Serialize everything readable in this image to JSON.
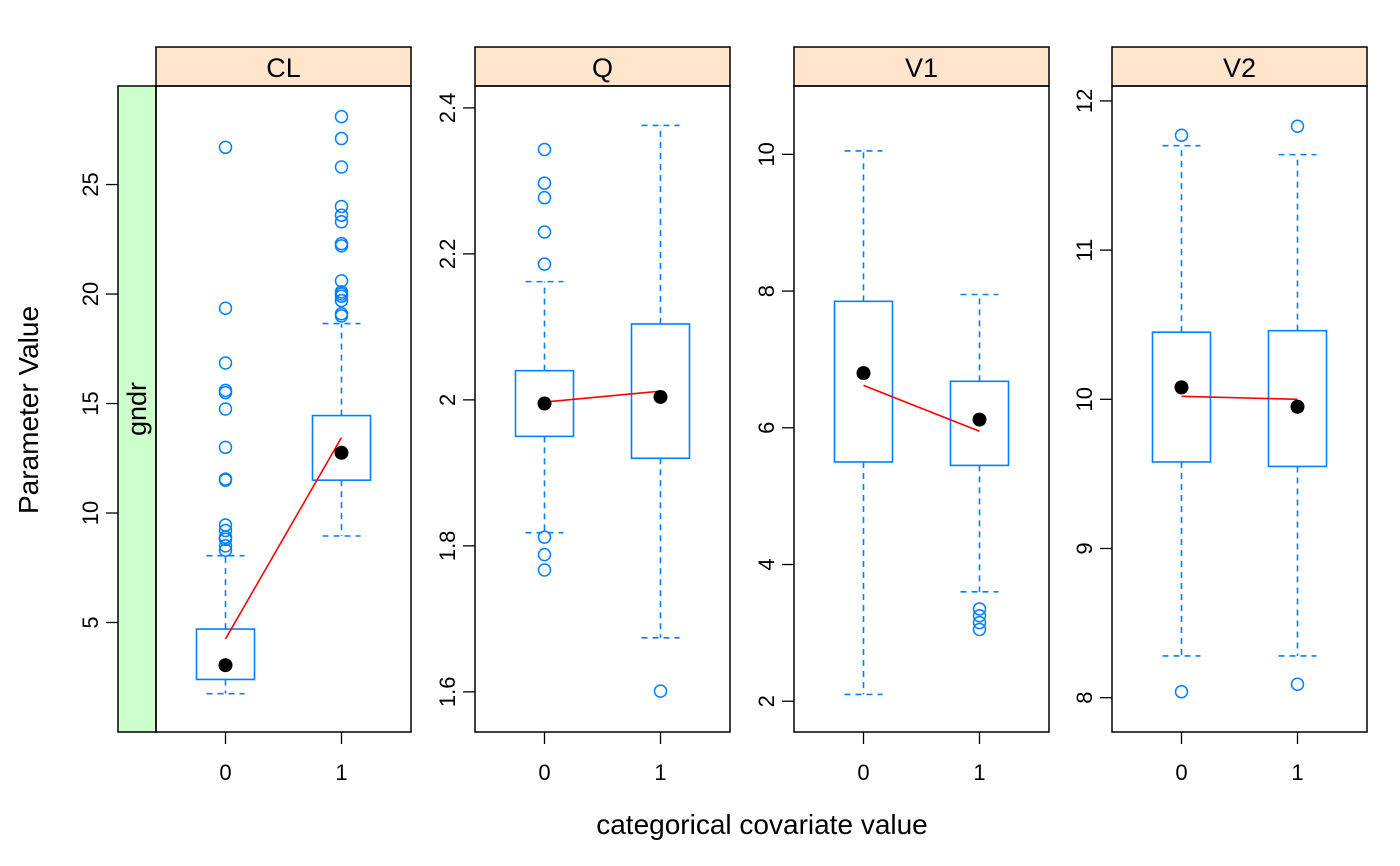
{
  "colors": {
    "box": "#0080FF",
    "outlier": "#0080FF",
    "median": "#000000",
    "trend": "#FF0000",
    "strip_top": "#FFE5CC",
    "strip_side": "#CCFFCC",
    "frame": "#000000"
  },
  "chart_data": {
    "type": "boxplot",
    "xlabel": "categorical covariate value",
    "ylabel": "Parameter Value",
    "conditioning_variable": "gndr",
    "categories": [
      "0",
      "1"
    ],
    "panels": [
      {
        "name": "CL",
        "ylim": [
          0,
          29.5
        ],
        "yticks": [
          5,
          10,
          15,
          20,
          25
        ],
        "boxes": [
          {
            "category": "0",
            "q1": 2.4,
            "median": 3.05,
            "q3": 4.7,
            "whisker_low": 1.75,
            "whisker_high": 8.05,
            "mean": 4.25,
            "outliers": [
              8.3,
              8.5,
              8.8,
              8.9,
              9.2,
              9.45,
              11.5,
              11.55,
              13.0,
              14.75,
              15.5,
              15.6,
              16.85,
              19.35,
              26.7
            ]
          },
          {
            "category": "1",
            "q1": 11.5,
            "median": 12.75,
            "q3": 14.45,
            "whisker_low": 8.95,
            "whisker_high": 18.65,
            "mean": 13.45,
            "outliers": [
              19.0,
              19.1,
              19.7,
              19.9,
              20.0,
              20.1,
              20.6,
              22.2,
              22.3,
              23.3,
              23.6,
              24.0,
              25.8,
              27.1,
              28.1
            ]
          }
        ]
      },
      {
        "name": "Q",
        "ylim": [
          1.545,
          2.43
        ],
        "yticks": [
          1.6,
          1.8,
          2.0,
          2.2,
          2.4
        ],
        "boxes": [
          {
            "category": "0",
            "q1": 1.95,
            "median": 1.995,
            "q3": 2.04,
            "whisker_low": 1.818,
            "whisker_high": 2.162,
            "mean": 1.997,
            "outliers": [
              1.767,
              1.788,
              1.812,
              2.186,
              2.23,
              2.277,
              2.297,
              2.343
            ]
          },
          {
            "category": "1",
            "q1": 1.92,
            "median": 2.004,
            "q3": 2.104,
            "whisker_low": 1.674,
            "whisker_high": 2.376,
            "mean": 2.012,
            "outliers": [
              1.601
            ]
          }
        ]
      },
      {
        "name": "V1",
        "ylim": [
          1.55,
          11.0
        ],
        "yticks": [
          2,
          4,
          6,
          8,
          10
        ],
        "boxes": [
          {
            "category": "0",
            "q1": 5.5,
            "median": 6.8,
            "q3": 7.85,
            "whisker_low": 2.1,
            "whisker_high": 10.05,
            "mean": 6.62,
            "outliers": []
          },
          {
            "category": "1",
            "q1": 5.45,
            "median": 6.12,
            "q3": 6.68,
            "whisker_low": 3.6,
            "whisker_high": 7.95,
            "mean": 5.95,
            "outliers": [
              3.05,
              3.15,
              3.25,
              3.35
            ]
          }
        ]
      },
      {
        "name": "V2",
        "ylim": [
          7.77,
          12.1
        ],
        "yticks": [
          8,
          9,
          10,
          11,
          12
        ],
        "boxes": [
          {
            "category": "0",
            "q1": 9.58,
            "median": 10.08,
            "q3": 10.45,
            "whisker_low": 8.28,
            "whisker_high": 11.7,
            "mean": 10.02,
            "outliers": [
              8.04,
              11.77
            ]
          },
          {
            "category": "1",
            "q1": 9.55,
            "median": 9.95,
            "q3": 10.46,
            "whisker_low": 8.28,
            "whisker_high": 11.64,
            "mean": 10.0,
            "outliers": [
              8.09,
              11.83
            ]
          }
        ]
      }
    ]
  }
}
